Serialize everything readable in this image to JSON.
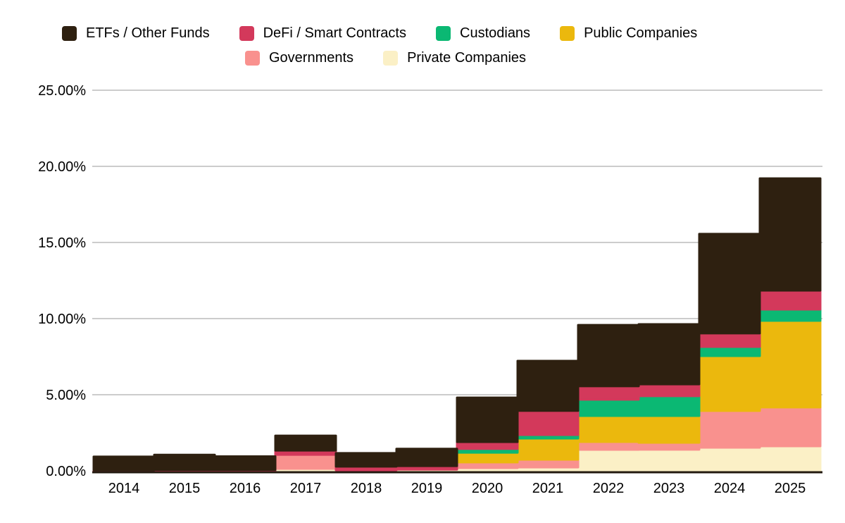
{
  "legend": {
    "rows": [
      [
        "ETFs / Other Funds",
        "DeFi / Smart Contracts",
        "Custodians",
        "Public Companies"
      ],
      [
        "Governments",
        "Private Companies"
      ]
    ]
  },
  "colors": {
    "grid": "#CCCCCC",
    "baseline": "#231A10",
    "axis_text": "#000000"
  },
  "chart_data": {
    "type": "area",
    "variant": "stepped-stacked",
    "title": "",
    "xlabel": "",
    "ylabel": "",
    "legend_position": "top",
    "grid": true,
    "ylim": [
      0,
      25
    ],
    "yticks": [
      {
        "value": 0,
        "label": "0.00%"
      },
      {
        "value": 5,
        "label": "5.00%"
      },
      {
        "value": 10,
        "label": "10.00%"
      },
      {
        "value": 15,
        "label": "15.00%"
      },
      {
        "value": 20,
        "label": "20.00%"
      },
      {
        "value": 25,
        "label": "25.00%"
      }
    ],
    "x": [
      "2014",
      "2015",
      "2016",
      "2017",
      "2018",
      "2019",
      "2020",
      "2021",
      "2022",
      "2023",
      "2024",
      "2025"
    ],
    "series_bottom_to_top": [
      {
        "name": "Private Companies",
        "color": "#FBF0C6",
        "values": [
          0,
          0,
          0,
          0.14,
          0.05,
          0.09,
          0.19,
          0.23,
          1.39,
          1.39,
          1.53,
          1.62
        ]
      },
      {
        "name": "Governments",
        "color": "#F9918E",
        "values": [
          0,
          0,
          0,
          0.92,
          0,
          0,
          0.37,
          0.51,
          0.51,
          0.46,
          2.41,
          2.55
        ]
      },
      {
        "name": "Public Companies",
        "color": "#EBB80D",
        "values": [
          0,
          0,
          0,
          0,
          0,
          0,
          0.64,
          1.39,
          1.71,
          1.76,
          3.61,
          5.69
        ]
      },
      {
        "name": "Custodians",
        "color": "#0BB873",
        "values": [
          0,
          0,
          0,
          0,
          0,
          0,
          0.25,
          0.23,
          1.07,
          1.3,
          0.6,
          0.74
        ]
      },
      {
        "name": "DeFi / Smart Contracts",
        "color": "#D3395B",
        "values": [
          0.05,
          0.07,
          0.07,
          0.28,
          0.23,
          0.23,
          0.45,
          1.58,
          0.88,
          0.78,
          0.88,
          1.25
        ]
      },
      {
        "name": "ETFs / Other Funds",
        "color": "#2E2010",
        "values": [
          0.88,
          0.98,
          0.88,
          0.97,
          0.88,
          1.13,
          2.91,
          3.28,
          4.02,
          3.94,
          6.53,
          7.36
        ]
      }
    ],
    "totals": [
      0.93,
      1.05,
      0.95,
      2.31,
      1.16,
      1.45,
      4.81,
      7.22,
      9.58,
      9.63,
      15.56,
      19.21
    ]
  }
}
